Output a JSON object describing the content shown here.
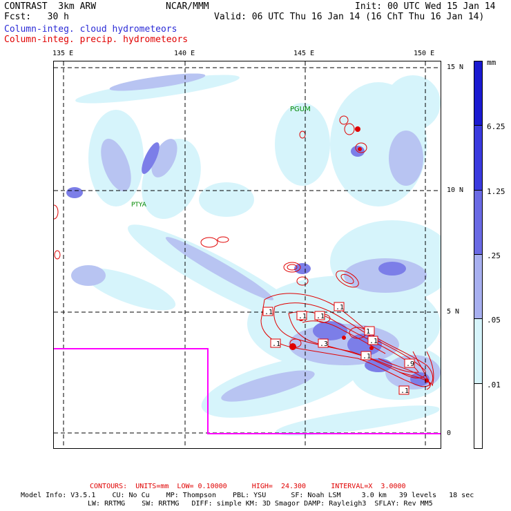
{
  "header": {
    "model": "CONTRAST  3km ARW",
    "center": "NCAR/MMM",
    "init": "Init: 00 UTC Wed 15 Jan 14",
    "fcst": "Fcst:   30 h",
    "valid": "Valid: 06 UTC Thu 16 Jan 14 (16 ChT Thu 16 Jan 14)",
    "field1": "Column-integ. cloud hydrometeors",
    "field2": "Column-integ. precip. hydrometeors"
  },
  "colors": {
    "field1": "#2b2bd6",
    "field2": "#e00000",
    "shade_light": "#d6f4fb",
    "shade_mid": "#b8c4f2",
    "shade_dark": "#7c7ee8",
    "boundary": "#ff00ff",
    "place": "#008800"
  },
  "map": {
    "lon_labels": [
      "135 E",
      "140 E",
      "145 E",
      "150 E"
    ],
    "lat_labels": [
      "15 N",
      "10 N",
      "5 N",
      "0"
    ],
    "places": [
      "PGUM",
      "PTYA"
    ]
  },
  "contour_labels": [
    ".1",
    ".1",
    ".1",
    ".1",
    ".3",
    ".1",
    "1",
    ".9",
    ".1",
    ".1",
    ".1"
  ],
  "colorbar": {
    "units": "mm",
    "levels": [
      "6.25",
      "1.25",
      ".25",
      ".05",
      ".01"
    ],
    "colors": [
      "#1a1ad0",
      "#3a3ade",
      "#6a6ae4",
      "#a8b0f0",
      "#d6f4fb",
      "#ffffff"
    ]
  },
  "footer": {
    "contours": "CONTOURS:  UNITS=mm  LOW= 0.10000      HIGH=  24.300      INTERVAL=X  3.0000",
    "model_info": "Model Info: V3.5.1    CU: No Cu    MP: Thompson    PBL: YSU      SF: Noah LSM     3.0 km   39 levels   18 sec",
    "model_info2": "LW: RRTMG    SW: RRTMG   DIFF: simple KM: 3D Smagor DAMP: Rayleigh3  SFLAY: Rev MM5"
  }
}
